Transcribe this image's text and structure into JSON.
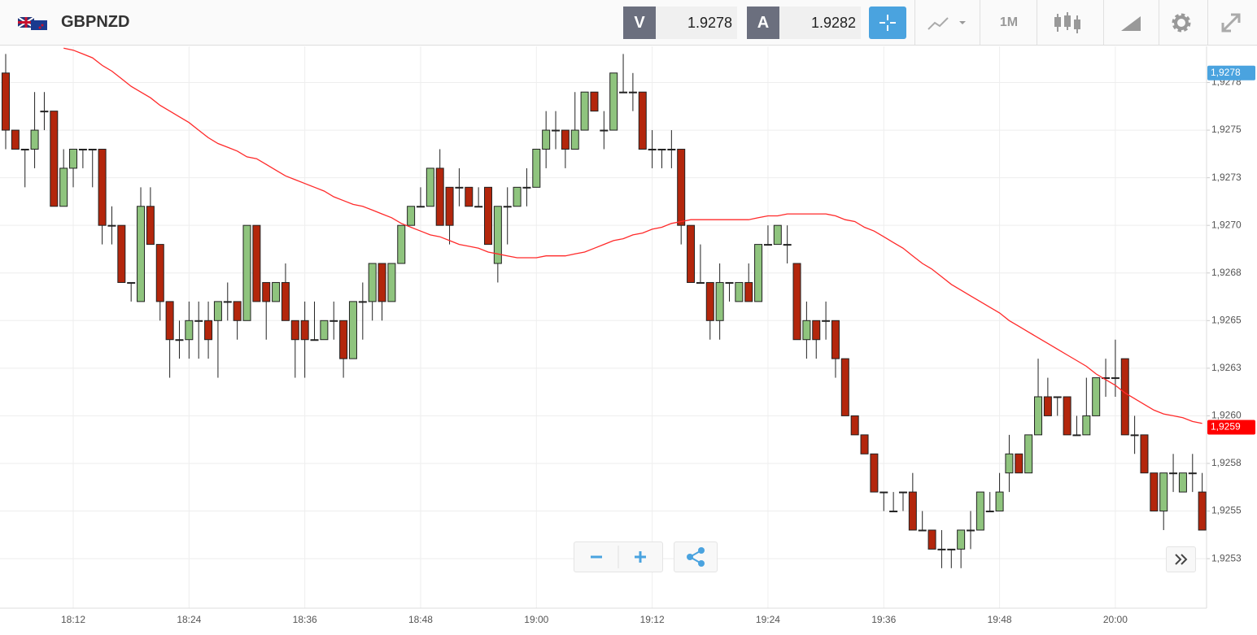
{
  "header": {
    "symbol": "GBPNZD",
    "bid_label": "V",
    "bid": "1.9278",
    "ask_label": "A",
    "ask": "1.9282",
    "timeframe": "1M"
  },
  "chart_data": {
    "type": "candlestick",
    "categories": [
      null,
      null,
      null,
      null,
      null,
      null,
      null,
      "18:12",
      null,
      null,
      null,
      null,
      null,
      null,
      null,
      null,
      null,
      null,
      null,
      "18:24",
      null,
      null,
      null,
      null,
      null,
      null,
      null,
      null,
      null,
      null,
      null,
      "18:36",
      null,
      null,
      null,
      null,
      null,
      null,
      null,
      null,
      null,
      null,
      null,
      "18:48",
      null,
      null,
      null,
      null,
      null,
      null,
      null,
      null,
      null,
      null,
      null,
      "19:00",
      null,
      null,
      null,
      null,
      null,
      null,
      null,
      null,
      null,
      null,
      null,
      "19:12",
      null,
      null,
      null,
      null,
      null,
      null,
      null,
      null,
      null,
      null,
      null,
      "19:24",
      null,
      null,
      null,
      null,
      null,
      null,
      null,
      null,
      null,
      null,
      null,
      "19:36",
      null,
      null,
      null,
      null,
      null,
      null,
      null,
      null,
      null,
      null,
      null,
      "19:48",
      null,
      null,
      null,
      null,
      null,
      null,
      null,
      null,
      null,
      null,
      null,
      "20:00",
      null,
      null,
      null,
      null,
      null,
      null,
      null,
      null,
      null
    ],
    "open": [
      1.9278,
      1.9275,
      1.9274,
      1.9274,
      1.9276,
      1.9276,
      1.9271,
      1.9273,
      1.9274,
      1.9274,
      1.9274,
      1.927,
      1.927,
      1.9267,
      1.9266,
      1.9271,
      1.9269,
      1.9266,
      1.9264,
      1.9264,
      1.9265,
      1.9265,
      1.9265,
      1.9266,
      1.9266,
      1.9265,
      1.927,
      1.9267,
      1.9266,
      1.9267,
      1.9265,
      1.9265,
      1.9264,
      1.9264,
      1.9265,
      1.9265,
      1.9263,
      1.9266,
      1.9266,
      1.9268,
      1.9266,
      1.9268,
      1.927,
      1.9271,
      1.9271,
      1.9273,
      1.9272,
      1.9272,
      1.9272,
      1.9271,
      1.9272,
      1.9268,
      1.9271,
      1.9271,
      1.9272,
      1.9272,
      1.9274,
      1.9275,
      1.9275,
      1.9274,
      1.9275,
      1.9277,
      1.9275,
      1.9275,
      1.9277,
      1.9277,
      1.9277,
      1.9274,
      1.9274,
      1.9274,
      1.9274,
      1.927,
      1.9267,
      1.9267,
      1.9265,
      1.9267,
      1.9266,
      1.9267,
      1.9266,
      1.9269,
      1.9269,
      1.9269,
      1.9268,
      1.9264,
      1.9265,
      1.9265,
      1.9265,
      1.9263,
      1.926,
      1.9259,
      1.9258,
      1.9256,
      1.9255,
      1.9256,
      1.9256,
      1.9254,
      1.9254,
      1.9253,
      1.9253,
      1.9253,
      1.9254,
      1.9254,
      1.9255,
      1.9255,
      1.9257,
      1.9258,
      1.9257,
      1.9259,
      1.9261,
      1.9261,
      1.9261,
      1.9259,
      1.9259,
      1.926,
      1.9262,
      1.9262,
      1.9263,
      1.9259,
      1.9259,
      1.9257,
      1.9255,
      1.9257,
      1.9256,
      1.9257,
      1.9256
    ],
    "high": [
      1.9279,
      1.9275,
      1.9274,
      1.9277,
      1.9277,
      1.9276,
      1.9274,
      1.9274,
      1.9274,
      1.9274,
      1.9274,
      1.9271,
      1.927,
      1.9267,
      1.9272,
      1.9272,
      1.9269,
      1.9266,
      1.9265,
      1.9266,
      1.9266,
      1.9266,
      1.9266,
      1.9267,
      1.9266,
      1.927,
      1.927,
      1.9267,
      1.9267,
      1.9268,
      1.9265,
      1.9266,
      1.9266,
      1.9265,
      1.9266,
      1.9265,
      1.9266,
      1.9267,
      1.9268,
      1.9268,
      1.9268,
      1.927,
      1.9271,
      1.9272,
      1.9273,
      1.9274,
      1.9272,
      1.9273,
      1.9272,
      1.9272,
      1.9272,
      1.9271,
      1.9272,
      1.9272,
      1.9273,
      1.9274,
      1.9276,
      1.9276,
      1.9275,
      1.9277,
      1.9277,
      1.9277,
      1.9276,
      1.9278,
      1.9279,
      1.9278,
      1.9277,
      1.9275,
      1.9274,
      1.9275,
      1.9274,
      1.927,
      1.9269,
      1.9267,
      1.9268,
      1.9267,
      1.9267,
      1.9268,
      1.9269,
      1.927,
      1.927,
      1.927,
      1.9268,
      1.9266,
      1.9265,
      1.9266,
      1.9265,
      1.9263,
      1.926,
      1.9259,
      1.9258,
      1.9256,
      1.9256,
      1.9256,
      1.9257,
      1.9255,
      1.9254,
      1.9254,
      1.9253,
      1.9254,
      1.9255,
      1.9256,
      1.9256,
      1.9257,
      1.9259,
      1.9258,
      1.9259,
      1.9263,
      1.9262,
      1.9261,
      1.9261,
      1.926,
      1.9262,
      1.9262,
      1.9263,
      1.9264,
      1.9263,
      1.926,
      1.9259,
      1.9257,
      1.9257,
      1.9258,
      1.9257,
      1.9258,
      1.9257
    ],
    "low": [
      1.9274,
      1.9274,
      1.9272,
      1.9273,
      1.9275,
      1.9271,
      1.9271,
      1.9272,
      1.9273,
      1.9272,
      1.9269,
      1.9269,
      1.9267,
      1.9266,
      1.9266,
      1.9269,
      1.9265,
      1.9262,
      1.9263,
      1.9263,
      1.9263,
      1.9263,
      1.9262,
      1.9265,
      1.9264,
      1.9265,
      1.9266,
      1.9264,
      1.9266,
      1.9265,
      1.9262,
      1.9262,
      1.9264,
      1.9264,
      1.9264,
      1.9262,
      1.9263,
      1.9264,
      1.9265,
      1.9265,
      1.9266,
      1.9268,
      1.927,
      1.9271,
      1.9271,
      1.927,
      1.9269,
      1.9271,
      1.9271,
      1.9271,
      1.9269,
      1.9267,
      1.9269,
      1.9271,
      1.9271,
      1.9272,
      1.9273,
      1.9274,
      1.9273,
      1.9274,
      1.9275,
      1.9276,
      1.9274,
      1.9275,
      1.9277,
      1.9276,
      1.9274,
      1.9273,
      1.9273,
      1.9273,
      1.9269,
      1.9267,
      1.9267,
      1.9264,
      1.9264,
      1.9266,
      1.9266,
      1.9266,
      1.9266,
      1.9269,
      1.9269,
      1.9268,
      1.9264,
      1.9263,
      1.9263,
      1.9264,
      1.9262,
      1.926,
      1.9259,
      1.9258,
      1.9256,
      1.9255,
      1.9255,
      1.9255,
      1.9254,
      1.9254,
      1.9253,
      1.9252,
      1.9252,
      1.9252,
      1.9253,
      1.9254,
      1.9255,
      1.9255,
      1.9256,
      1.9257,
      1.9257,
      1.9259,
      1.926,
      1.926,
      1.9259,
      1.9259,
      1.9259,
      1.926,
      1.9261,
      1.9261,
      1.9259,
      1.9258,
      1.9257,
      1.9255,
      1.9254,
      1.9256,
      1.9256,
      1.9256,
      1.9254
    ],
    "close": [
      1.9275,
      1.9274,
      1.9274,
      1.9275,
      1.9276,
      1.9271,
      1.9273,
      1.9274,
      1.9274,
      1.9274,
      1.927,
      1.927,
      1.9267,
      1.9267,
      1.9271,
      1.9269,
      1.9266,
      1.9264,
      1.9264,
      1.9265,
      1.9265,
      1.9264,
      1.9266,
      1.9266,
      1.9265,
      1.927,
      1.9266,
      1.9266,
      1.9267,
      1.9265,
      1.9264,
      1.9264,
      1.9264,
      1.9265,
      1.9265,
      1.9263,
      1.9266,
      1.9266,
      1.9268,
      1.9266,
      1.9268,
      1.927,
      1.9271,
      1.9271,
      1.9273,
      1.927,
      1.927,
      1.9272,
      1.9271,
      1.9271,
      1.9269,
      1.9271,
      1.9271,
      1.9272,
      1.9272,
      1.9274,
      1.9275,
      1.9275,
      1.9274,
      1.9275,
      1.9277,
      1.9276,
      1.9275,
      1.9278,
      1.9277,
      1.9277,
      1.9274,
      1.9274,
      1.9274,
      1.9274,
      1.927,
      1.9267,
      1.9267,
      1.9265,
      1.9267,
      1.9267,
      1.9267,
      1.9266,
      1.9269,
      1.9269,
      1.927,
      1.9269,
      1.9264,
      1.9265,
      1.9264,
      1.9265,
      1.9263,
      1.926,
      1.9259,
      1.9258,
      1.9256,
      1.9256,
      1.9255,
      1.9256,
      1.9254,
      1.9254,
      1.9253,
      1.9253,
      1.9253,
      1.9254,
      1.9254,
      1.9256,
      1.9255,
      1.9256,
      1.9258,
      1.9257,
      1.9259,
      1.9261,
      1.926,
      1.9261,
      1.9259,
      1.9259,
      1.926,
      1.9262,
      1.9262,
      1.9262,
      1.9259,
      1.9259,
      1.9257,
      1.9255,
      1.9257,
      1.9257,
      1.9257,
      1.9257,
      1.9254
    ],
    "up_color": "#8fc47e",
    "down_color": "#b3260c",
    "overlays": [
      {
        "color": "#ff2a2a",
        "values": [
          null,
          null,
          null,
          null,
          null,
          null,
          1.92793,
          1.92792,
          1.9279,
          1.92788,
          1.92784,
          1.92781,
          1.92777,
          1.92773,
          1.9277,
          1.92767,
          1.92763,
          1.9276,
          1.92757,
          1.92754,
          1.9275,
          1.92746,
          1.92743,
          1.92741,
          1.92739,
          1.92736,
          1.92735,
          1.92732,
          1.92729,
          1.92726,
          1.92724,
          1.92722,
          1.9272,
          1.92718,
          1.92715,
          1.92713,
          1.92711,
          1.9271,
          1.92708,
          1.92706,
          1.92704,
          1.92701,
          1.92699,
          1.92697,
          1.92695,
          1.92694,
          1.92692,
          1.9269,
          1.92689,
          1.92688,
          1.92686,
          1.92685,
          1.92684,
          1.92683,
          1.92683,
          1.92683,
          1.92684,
          1.92684,
          1.92684,
          1.92685,
          1.92686,
          1.92688,
          1.9269,
          1.92692,
          1.92693,
          1.92695,
          1.92696,
          1.92698,
          1.92699,
          1.92701,
          1.92702,
          1.92703,
          1.92703,
          1.92703,
          1.92703,
          1.92703,
          1.92703,
          1.92703,
          1.92704,
          1.92705,
          1.92705,
          1.92706,
          1.92706,
          1.92706,
          1.92706,
          1.92706,
          1.92705,
          1.92703,
          1.92702,
          1.92699,
          1.92697,
          1.92694,
          1.92691,
          1.92688,
          1.92684,
          1.9268,
          1.92677,
          1.92673,
          1.92669,
          1.92666,
          1.92663,
          1.9266,
          1.92657,
          1.92654,
          1.9265,
          1.92647,
          1.92644,
          1.92641,
          1.92638,
          1.92635,
          1.92632,
          1.92629,
          1.92626,
          1.92622,
          1.92619,
          1.92616,
          1.92612,
          1.92609,
          1.92606,
          1.92603,
          1.92601,
          1.926,
          1.92599,
          1.92597,
          1.92596
        ]
      }
    ],
    "ylim": [
      1.92499,
      1.92794
    ],
    "yticks": [
      {
        "value": 1.92775,
        "label": "1,9278"
      },
      {
        "value": 1.9275,
        "label": "1,9275"
      },
      {
        "value": 1.92725,
        "label": "1,9273"
      },
      {
        "value": 1.927,
        "label": "1,9270"
      },
      {
        "value": 1.92675,
        "label": "1,9268"
      },
      {
        "value": 1.9265,
        "label": "1,9265"
      },
      {
        "value": 1.92625,
        "label": "1,9263"
      },
      {
        "value": 1.926,
        "label": "1,9260"
      },
      {
        "value": 1.92575,
        "label": "1,9258"
      },
      {
        "value": 1.9255,
        "label": "1,9255"
      },
      {
        "value": 1.92525,
        "label": "1,9253"
      }
    ],
    "grid": true,
    "price_labels": [
      {
        "value": 1.9278,
        "label": "1,9278",
        "color": "#4aa3df"
      },
      {
        "value": 1.92594,
        "label": "1,9259",
        "color": "#ff0000"
      }
    ]
  }
}
